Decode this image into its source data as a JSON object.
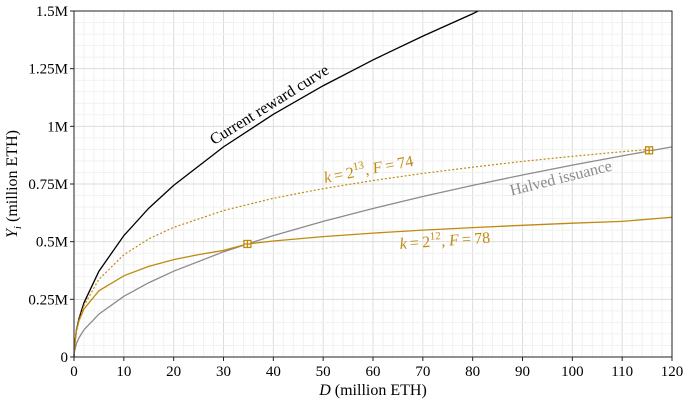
{
  "chart_data": {
    "type": "line",
    "xlabel": "D",
    "xlabel_unit": "(million ETH)",
    "ylabel": "Y",
    "ylabel_sub": "i",
    "ylabel_unit": "(million ETH)",
    "xlim": [
      0,
      120
    ],
    "ylim": [
      0,
      1.5
    ],
    "x_ticks": [
      0,
      10,
      20,
      30,
      40,
      50,
      60,
      70,
      80,
      90,
      100,
      110,
      120
    ],
    "x_tick_labels": [
      "0",
      "10",
      "20",
      "30",
      "40",
      "50",
      "60",
      "70",
      "80",
      "90",
      "100",
      "110",
      "120"
    ],
    "y_ticks": [
      0,
      0.25,
      0.5,
      0.75,
      1,
      1.25,
      1.5
    ],
    "y_tick_labels": [
      "0",
      "0.25M",
      "0.5M",
      "0.75M",
      "1M",
      "1.25M",
      "1.5M"
    ],
    "grid": true,
    "series": [
      {
        "name": "Current reward curve",
        "color": "#000000",
        "style": "solid",
        "x": [
          0.05,
          0.5,
          1,
          2,
          5,
          10,
          15,
          20,
          30,
          40,
          50,
          60,
          70,
          80,
          81.1
        ],
        "y": [
          0.037,
          0.118,
          0.166,
          0.235,
          0.372,
          0.526,
          0.645,
          0.744,
          0.911,
          1.052,
          1.176,
          1.288,
          1.391,
          1.488,
          1.5
        ]
      },
      {
        "name": "Halved issuance",
        "color": "#8c8c8c",
        "style": "solid",
        "x": [
          0.05,
          0.5,
          1,
          2,
          5,
          10,
          15,
          20,
          30,
          34.8,
          40,
          50,
          60,
          70,
          80,
          90,
          100,
          110,
          120
        ],
        "y": [
          0.019,
          0.059,
          0.083,
          0.118,
          0.186,
          0.263,
          0.322,
          0.372,
          0.456,
          0.49,
          0.526,
          0.588,
          0.644,
          0.696,
          0.744,
          0.789,
          0.832,
          0.872,
          0.911
        ]
      },
      {
        "name": "k = 2^12, F = 78",
        "color": "#c08a10",
        "style": "solid",
        "x": [
          0.05,
          0.5,
          1,
          2,
          5,
          10,
          15,
          20,
          25,
          30,
          34.8,
          40,
          50,
          60,
          70,
          80,
          90,
          100,
          110,
          120
        ],
        "y": [
          0.037,
          0.114,
          0.157,
          0.208,
          0.287,
          0.352,
          0.393,
          0.422,
          0.444,
          0.462,
          0.49,
          0.503,
          0.522,
          0.537,
          0.55,
          0.561,
          0.571,
          0.58,
          0.588,
          0.606
        ]
      },
      {
        "name": "k = 2^13, F = 74",
        "color": "#c08a10",
        "style": "dotted",
        "x": [
          0.05,
          0.5,
          1,
          2,
          5,
          10,
          15,
          20,
          30,
          40,
          50,
          60,
          70,
          80,
          90,
          100,
          110,
          115.4
        ],
        "y": [
          0.036,
          0.114,
          0.16,
          0.223,
          0.337,
          0.443,
          0.512,
          0.562,
          0.635,
          0.688,
          0.73,
          0.765,
          0.796,
          0.823,
          0.848,
          0.87,
          0.89,
          0.9
        ]
      }
    ],
    "markers": [
      {
        "x": 34.8,
        "y": 0.49,
        "color": "#c08a10"
      },
      {
        "x": 115.4,
        "y": 0.896,
        "color": "#c08a10"
      }
    ],
    "annotations": [
      {
        "text": "Current reward curve",
        "color": "#000000"
      },
      {
        "text": "Halved issuance",
        "color": "#8c8c8c"
      },
      {
        "text": "k = 2^13, F = 74",
        "color": "#c08a10"
      },
      {
        "text": "k = 2^12, F = 78",
        "color": "#c08a10"
      }
    ]
  }
}
